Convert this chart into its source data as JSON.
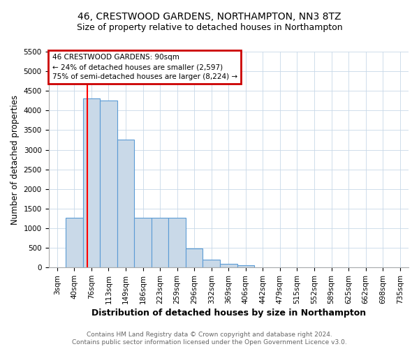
{
  "title": "46, CRESTWOOD GARDENS, NORTHAMPTON, NN3 8TZ",
  "subtitle": "Size of property relative to detached houses in Northampton",
  "xlabel": "Distribution of detached houses by size in Northampton",
  "ylabel": "Number of detached properties",
  "categories": [
    "3sqm",
    "40sqm",
    "76sqm",
    "113sqm",
    "149sqm",
    "186sqm",
    "223sqm",
    "259sqm",
    "296sqm",
    "332sqm",
    "369sqm",
    "406sqm",
    "442sqm",
    "479sqm",
    "515sqm",
    "552sqm",
    "589sqm",
    "625sqm",
    "662sqm",
    "698sqm",
    "735sqm"
  ],
  "bar_values": [
    0,
    1270,
    4300,
    4250,
    3250,
    1270,
    1270,
    1270,
    480,
    200,
    90,
    65,
    0,
    0,
    0,
    0,
    0,
    0,
    0,
    0,
    0
  ],
  "bar_color": "#c9d9e8",
  "bar_edge_color": "#5b9bd5",
  "bar_edge_width": 0.8,
  "ylim": [
    0,
    5500
  ],
  "yticks": [
    0,
    500,
    1000,
    1500,
    2000,
    2500,
    3000,
    3500,
    4000,
    4500,
    5000,
    5500
  ],
  "red_line_x": 1.78,
  "annotation_text": "46 CRESTWOOD GARDENS: 90sqm\n← 24% of detached houses are smaller (2,597)\n75% of semi-detached houses are larger (8,224) →",
  "annotation_box_color": "#ffffff",
  "annotation_border_color": "#cc0000",
  "footer1": "Contains HM Land Registry data © Crown copyright and database right 2024.",
  "footer2": "Contains public sector information licensed under the Open Government Licence v3.0.",
  "background_color": "#ffffff",
  "grid_color": "#c8d8e8",
  "title_fontsize": 10,
  "subtitle_fontsize": 9,
  "xlabel_fontsize": 9,
  "ylabel_fontsize": 8.5,
  "tick_fontsize": 7.5,
  "annotation_fontsize": 7.5,
  "footer_fontsize": 6.5
}
